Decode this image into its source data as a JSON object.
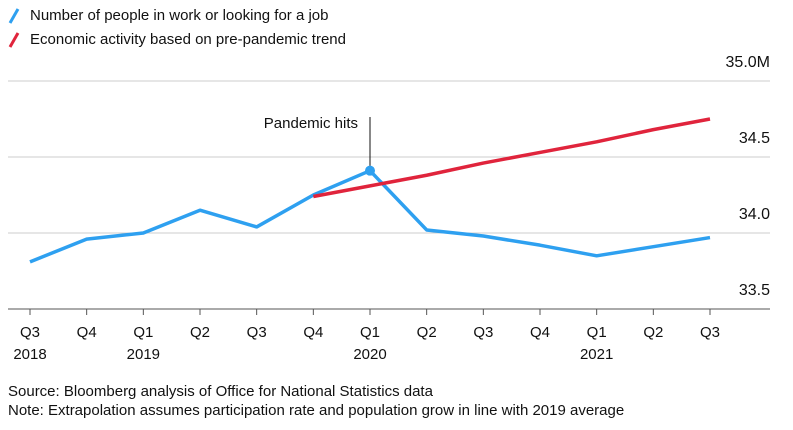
{
  "chart_data": {
    "type": "line",
    "categories": [
      "Q3",
      "Q4",
      "Q1",
      "Q2",
      "Q3",
      "Q4",
      "Q1",
      "Q2",
      "Q3",
      "Q4",
      "Q1",
      "Q2",
      "Q3"
    ],
    "year_labels": [
      "2018",
      null,
      "2019",
      null,
      null,
      null,
      "2020",
      null,
      null,
      null,
      "2021",
      null,
      null
    ],
    "series": [
      {
        "name": "Number of people in work or looking for a job",
        "color": "#2ea0f0",
        "values": [
          33.81,
          33.96,
          34.0,
          34.15,
          34.04,
          34.25,
          34.41,
          34.02,
          33.98,
          33.92,
          33.85,
          33.91,
          33.97
        ]
      },
      {
        "name": "Economic activity based on pre-pandemic trend",
        "color": "#e0243c",
        "values": [
          null,
          null,
          null,
          null,
          null,
          34.24,
          34.31,
          34.38,
          34.46,
          34.53,
          34.6,
          34.68,
          34.75
        ]
      }
    ],
    "ylim": [
      33.5,
      35.0
    ],
    "yticks": [
      33.5,
      {
        "value": 34,
        "label": "34.0"
      },
      34.5,
      {
        "value": 35,
        "label": "35.0M"
      }
    ],
    "grid": true,
    "annotation": {
      "text": "Pandemic hits",
      "index": 6
    },
    "source": "Source: Bloomberg analysis of Office for National Statistics data",
    "note": "Note: Extrapolation assumes participation rate and population grow in line with 2019 average"
  }
}
